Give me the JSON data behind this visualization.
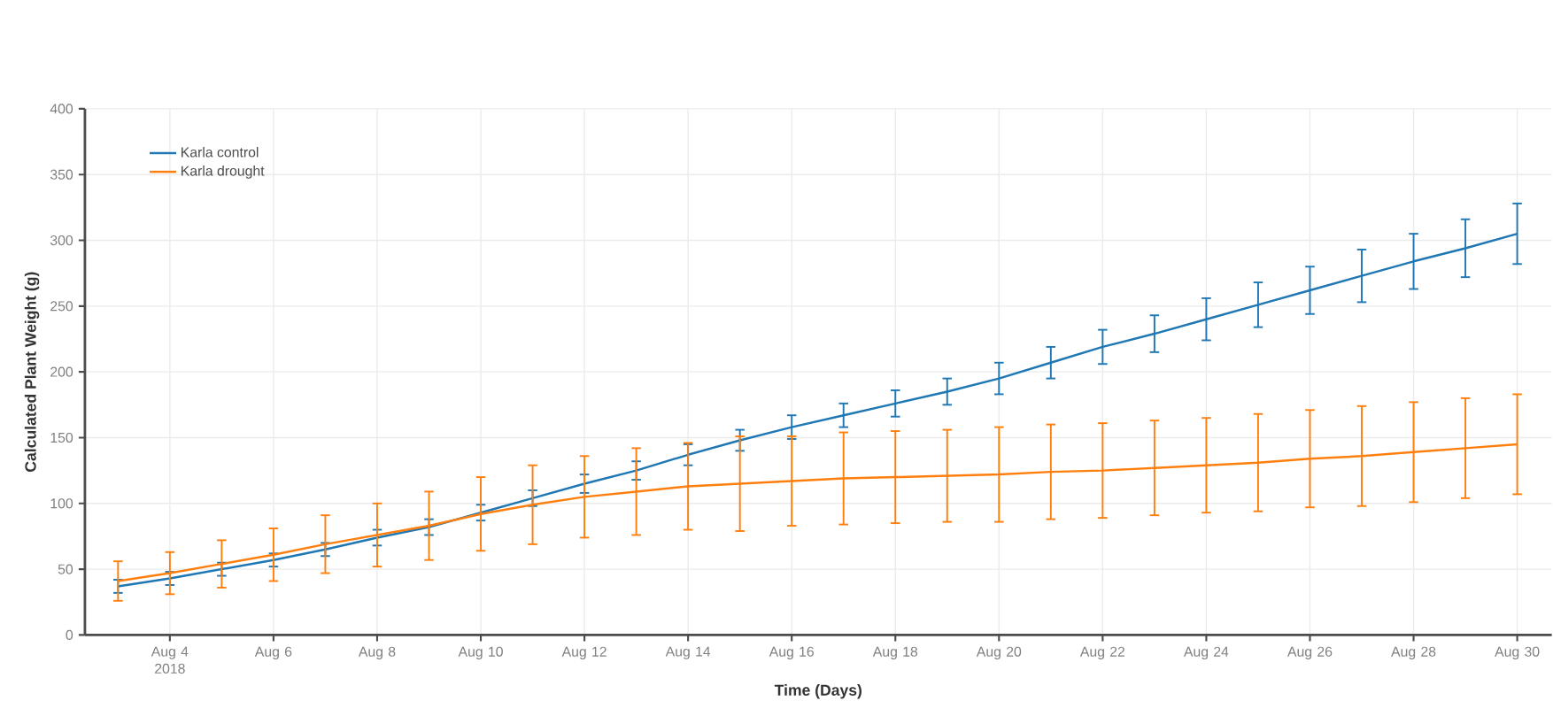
{
  "chart_data": {
    "type": "line",
    "xlabel": "Time (Days)",
    "ylabel": "Calculated Plant Weight (g)",
    "x": [
      "2018-08-03",
      "2018-08-04",
      "2018-08-05",
      "2018-08-06",
      "2018-08-07",
      "2018-08-08",
      "2018-08-09",
      "2018-08-10",
      "2018-08-11",
      "2018-08-12",
      "2018-08-13",
      "2018-08-14",
      "2018-08-15",
      "2018-08-16",
      "2018-08-17",
      "2018-08-18",
      "2018-08-19",
      "2018-08-20",
      "2018-08-21",
      "2018-08-22",
      "2018-08-23",
      "2018-08-24",
      "2018-08-25",
      "2018-08-26",
      "2018-08-27",
      "2018-08-28",
      "2018-08-29",
      "2018-08-30"
    ],
    "series": [
      {
        "name": "Karla control",
        "color": "#1f77b4",
        "values": [
          37,
          43,
          50,
          57,
          65,
          74,
          82,
          93,
          104,
          115,
          125,
          137,
          148,
          158,
          167,
          176,
          185,
          195,
          207,
          219,
          229,
          240,
          251,
          262,
          273,
          284,
          294,
          305
        ],
        "errors": [
          5,
          5,
          5,
          5,
          5,
          6,
          6,
          6,
          6,
          7,
          7,
          8,
          8,
          9,
          9,
          10,
          10,
          12,
          12,
          13,
          14,
          16,
          17,
          18,
          20,
          21,
          22,
          23
        ]
      },
      {
        "name": "Karla drought",
        "color": "#ff7f0e",
        "values": [
          41,
          47,
          54,
          61,
          69,
          76,
          83,
          92,
          99,
          105,
          109,
          113,
          115,
          117,
          119,
          120,
          121,
          122,
          124,
          125,
          127,
          129,
          131,
          134,
          136,
          139,
          142,
          145
        ],
        "errors": [
          15,
          16,
          18,
          20,
          22,
          24,
          26,
          28,
          30,
          31,
          33,
          33,
          36,
          34,
          35,
          35,
          35,
          36,
          36,
          36,
          36,
          36,
          37,
          37,
          38,
          38,
          38,
          38
        ]
      }
    ],
    "xlim": [
      "2018-08-02T08:40",
      "2018-08-30T16:00"
    ],
    "xticks": [
      {
        "value": "2018-08-04",
        "label": "Aug 4 2018"
      },
      {
        "value": "2018-08-06",
        "label": "Aug 6"
      },
      {
        "value": "2018-08-08",
        "label": "Aug 8"
      },
      {
        "value": "2018-08-10",
        "label": "Aug 10"
      },
      {
        "value": "2018-08-12",
        "label": "Aug 12"
      },
      {
        "value": "2018-08-14",
        "label": "Aug 14"
      },
      {
        "value": "2018-08-16",
        "label": "Aug 16"
      },
      {
        "value": "2018-08-18",
        "label": "Aug 18"
      },
      {
        "value": "2018-08-20",
        "label": "Aug 20"
      },
      {
        "value": "2018-08-22",
        "label": "Aug 22"
      },
      {
        "value": "2018-08-24",
        "label": "Aug 24"
      },
      {
        "value": "2018-08-26",
        "label": "Aug 26"
      },
      {
        "value": "2018-08-28",
        "label": "Aug 28"
      },
      {
        "value": "2018-08-30",
        "label": "Aug 30"
      }
    ],
    "ylim": [
      0,
      400
    ],
    "yticks": [
      0,
      50,
      100,
      150,
      200,
      250,
      300,
      350,
      400
    ],
    "grid": true,
    "legend": "top left",
    "marker": "none",
    "line_style": "solid"
  }
}
